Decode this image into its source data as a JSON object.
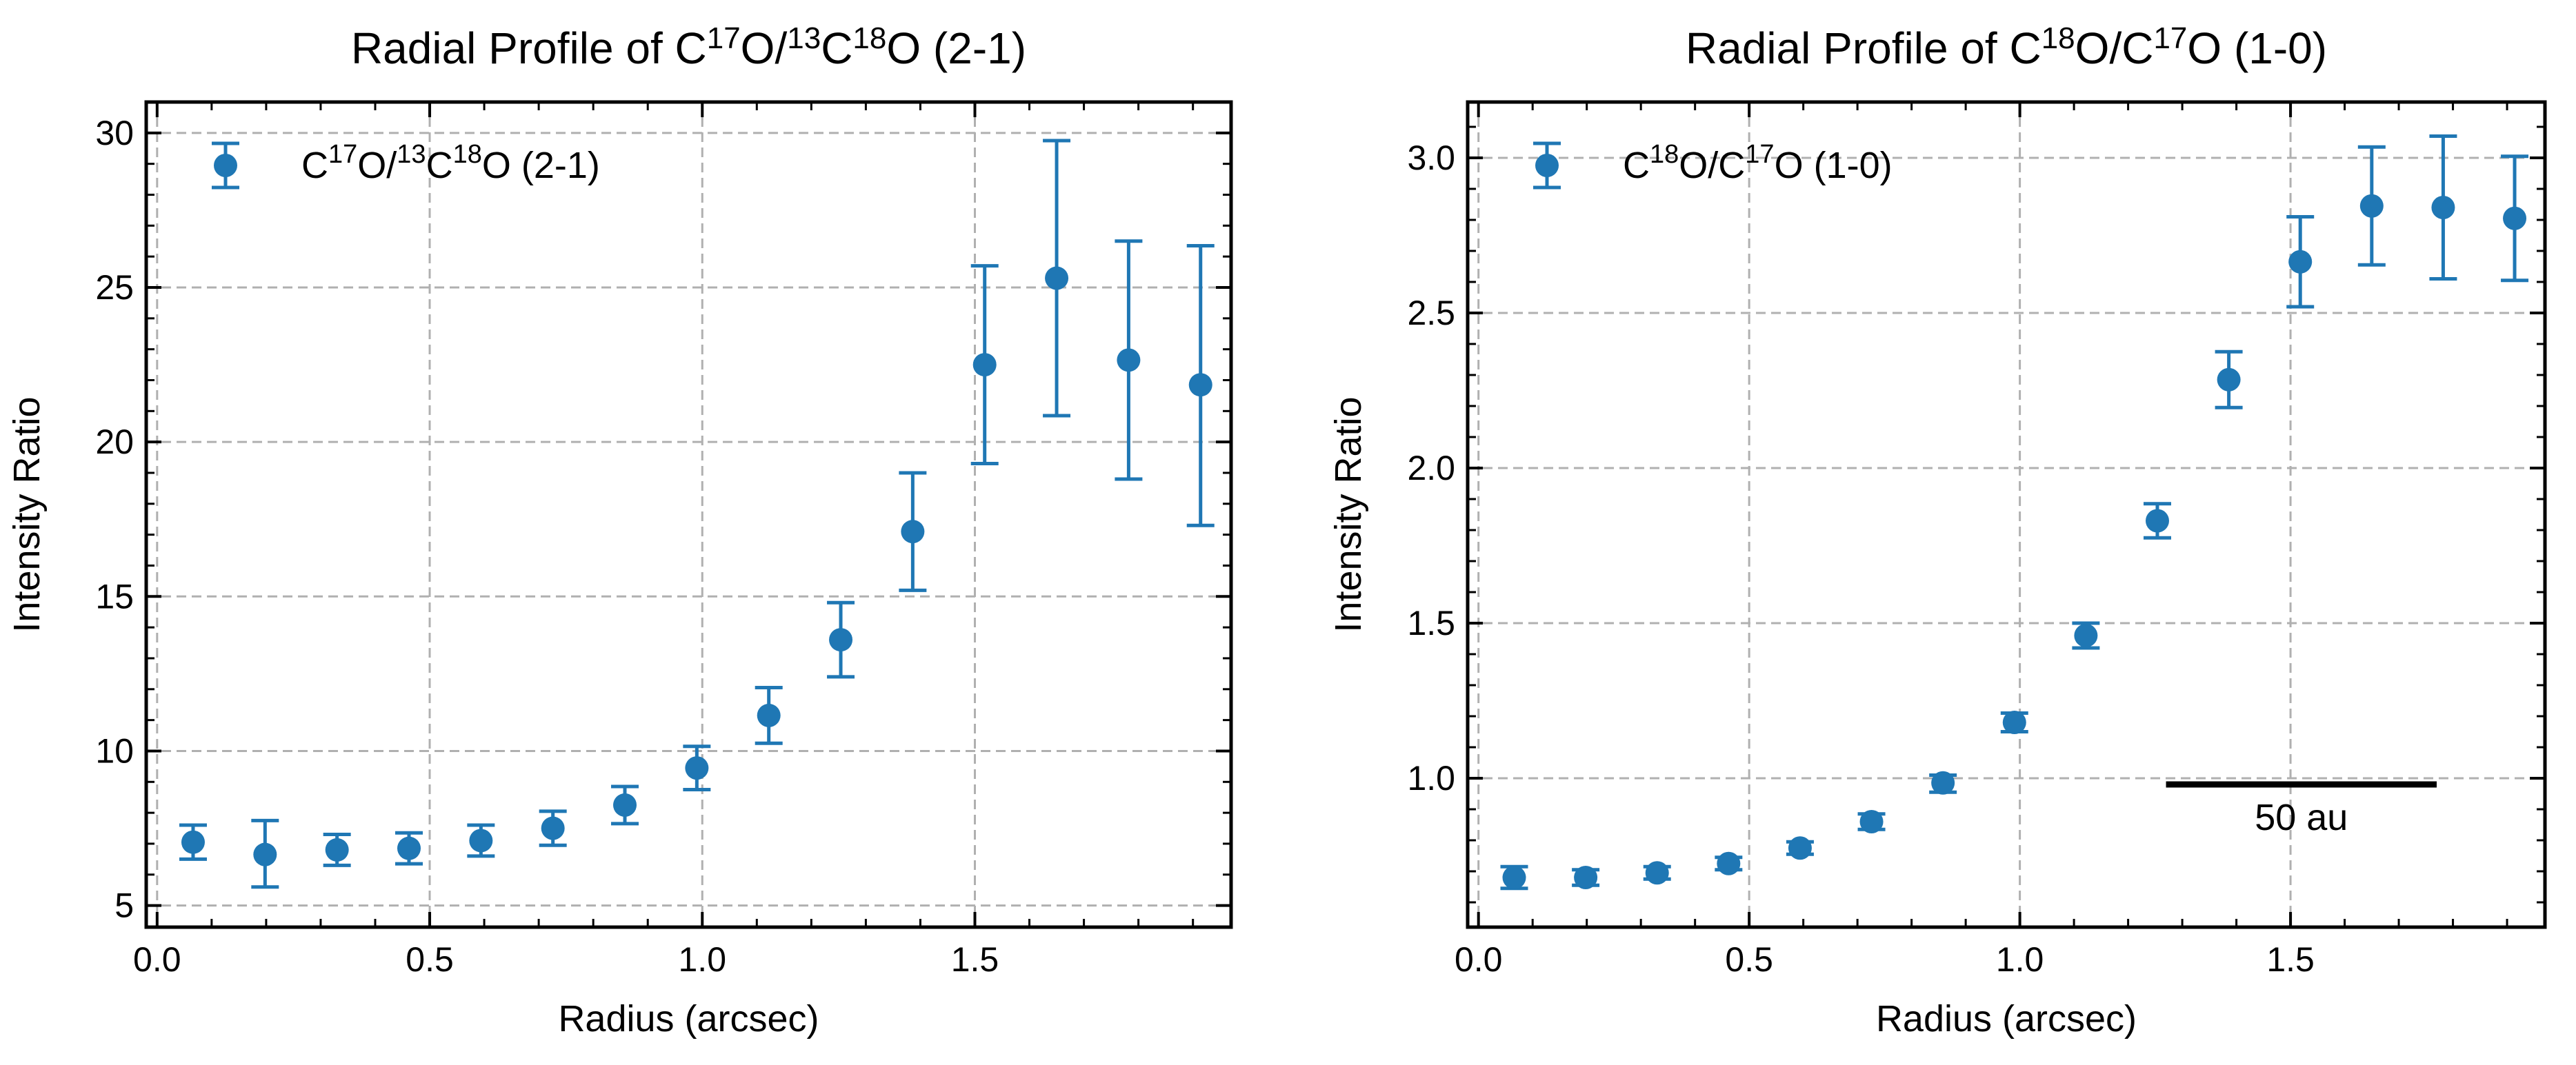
{
  "chart_data": [
    {
      "type": "scatter",
      "title_base": "Radial Profile of C",
      "title_parts": [
        "Radial Profile of C",
        "17",
        "O/",
        "13",
        "C",
        "18",
        "O (2-1)"
      ],
      "xlabel": "Radius (arcsec)",
      "ylabel": "Intensity Ratio",
      "xlim": [
        -0.02,
        1.97
      ],
      "ylim": [
        4.3,
        31.0
      ],
      "xticks": [
        0.0,
        0.5,
        1.0,
        1.5
      ],
      "xtick_labels": [
        "0.0",
        "0.5",
        "1.0",
        "1.5"
      ],
      "yticks": [
        5,
        10,
        15,
        20,
        25,
        30
      ],
      "ytick_labels": [
        "5",
        "10",
        "15",
        "20",
        "25",
        "30"
      ],
      "xminor_step": 0.1,
      "yminor_step": 1,
      "grid": true,
      "legend_position": "top-left",
      "series": [
        {
          "name": "C17O/13C18O (2-1)",
          "legend_parts": [
            "C",
            "17",
            "O/",
            "13",
            "C",
            "18",
            "O (2-1)"
          ],
          "color": "#1f77b4",
          "x": [
            0.066,
            0.198,
            0.33,
            0.462,
            0.594,
            0.726,
            0.858,
            0.99,
            1.122,
            1.254,
            1.386,
            1.518,
            1.65,
            1.782,
            1.914
          ],
          "y": [
            7.05,
            6.65,
            6.8,
            6.85,
            7.1,
            7.5,
            8.25,
            9.45,
            11.15,
            13.6,
            17.1,
            22.5,
            25.3,
            22.65,
            21.85
          ],
          "yerr_low": [
            6.5,
            5.6,
            6.3,
            6.35,
            6.6,
            6.95,
            7.65,
            8.75,
            10.25,
            12.4,
            15.2,
            19.3,
            20.85,
            18.8,
            17.3
          ],
          "yerr_high": [
            7.6,
            7.75,
            7.3,
            7.35,
            7.6,
            8.05,
            8.85,
            10.15,
            12.05,
            14.8,
            19.0,
            25.7,
            29.75,
            26.5,
            26.35
          ]
        }
      ]
    },
    {
      "type": "scatter",
      "title_parts": [
        "Radial Profile of C",
        "18",
        "O/C",
        "17",
        "O (1-0)"
      ],
      "xlabel": "Radius (arcsec)",
      "ylabel": "Intensity Ratio",
      "xlim": [
        -0.02,
        1.97
      ],
      "ylim": [
        0.52,
        3.18
      ],
      "xticks": [
        0.0,
        0.5,
        1.0,
        1.5
      ],
      "xtick_labels": [
        "0.0",
        "0.5",
        "1.0",
        "1.5"
      ],
      "yticks": [
        1.0,
        1.5,
        2.0,
        2.5,
        3.0
      ],
      "ytick_labels": [
        "1.0",
        "1.5",
        "2.0",
        "2.5",
        "3.0"
      ],
      "xminor_step": 0.1,
      "yminor_step": 0.1,
      "grid": true,
      "legend_position": "top-left",
      "scalebar": {
        "label": "50 au",
        "x_start": 1.27,
        "x_end": 1.77,
        "y": 0.98
      },
      "series": [
        {
          "name": "C18O/C17O (1-0)",
          "legend_parts": [
            "C",
            "18",
            "O/C",
            "17",
            "O (1-0)"
          ],
          "color": "#1f77b4",
          "x": [
            0.066,
            0.198,
            0.33,
            0.462,
            0.594,
            0.726,
            0.858,
            0.99,
            1.122,
            1.254,
            1.386,
            1.518,
            1.65,
            1.782,
            1.914
          ],
          "y": [
            0.68,
            0.68,
            0.695,
            0.725,
            0.775,
            0.86,
            0.985,
            1.18,
            1.46,
            1.83,
            2.285,
            2.665,
            2.845,
            2.84,
            2.805
          ],
          "yerr_low": [
            0.645,
            0.655,
            0.675,
            0.705,
            0.755,
            0.835,
            0.955,
            1.15,
            1.42,
            1.775,
            2.195,
            2.52,
            2.655,
            2.61,
            2.605
          ],
          "yerr_high": [
            0.715,
            0.705,
            0.715,
            0.745,
            0.795,
            0.885,
            1.01,
            1.21,
            1.5,
            1.885,
            2.375,
            2.81,
            3.035,
            3.07,
            3.005
          ]
        }
      ]
    }
  ]
}
